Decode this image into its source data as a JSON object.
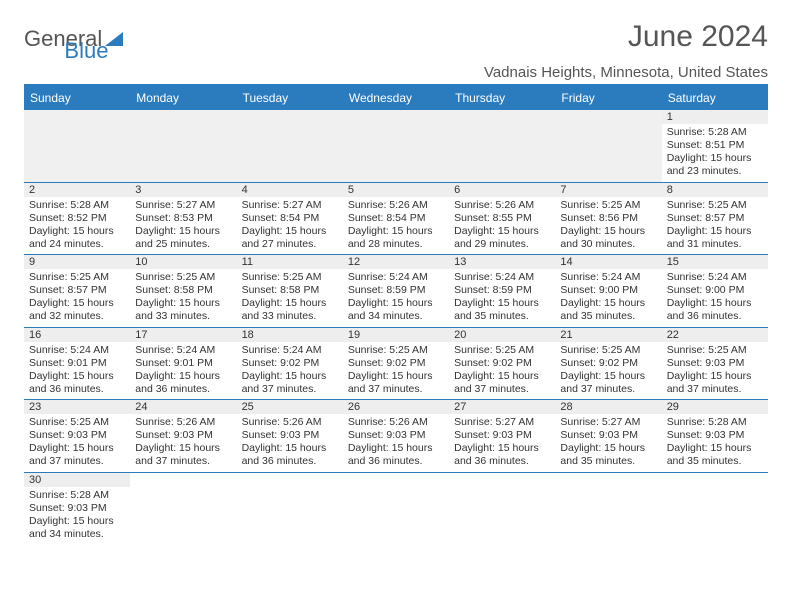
{
  "logo": {
    "text1": "General",
    "text2": "Blue",
    "color1": "#555555",
    "color2": "#2b7bbf"
  },
  "title": "June 2024",
  "location": "Vadnais Heights, Minnesota, United States",
  "header_color": "#2b7bbf",
  "row_bar_color": "#eeeeee",
  "daynames": [
    "Sunday",
    "Monday",
    "Tuesday",
    "Wednesday",
    "Thursday",
    "Friday",
    "Saturday"
  ],
  "labels": {
    "sunrise": "Sunrise:",
    "sunset": "Sunset:",
    "daylight": "Daylight:"
  },
  "weeks": [
    [
      null,
      null,
      null,
      null,
      null,
      null,
      {
        "d": "1",
        "sunrise": "5:28 AM",
        "sunset": "8:51 PM",
        "daylight": "15 hours and 23 minutes."
      }
    ],
    [
      {
        "d": "2",
        "sunrise": "5:28 AM",
        "sunset": "8:52 PM",
        "daylight": "15 hours and 24 minutes."
      },
      {
        "d": "3",
        "sunrise": "5:27 AM",
        "sunset": "8:53 PM",
        "daylight": "15 hours and 25 minutes."
      },
      {
        "d": "4",
        "sunrise": "5:27 AM",
        "sunset": "8:54 PM",
        "daylight": "15 hours and 27 minutes."
      },
      {
        "d": "5",
        "sunrise": "5:26 AM",
        "sunset": "8:54 PM",
        "daylight": "15 hours and 28 minutes."
      },
      {
        "d": "6",
        "sunrise": "5:26 AM",
        "sunset": "8:55 PM",
        "daylight": "15 hours and 29 minutes."
      },
      {
        "d": "7",
        "sunrise": "5:25 AM",
        "sunset": "8:56 PM",
        "daylight": "15 hours and 30 minutes."
      },
      {
        "d": "8",
        "sunrise": "5:25 AM",
        "sunset": "8:57 PM",
        "daylight": "15 hours and 31 minutes."
      }
    ],
    [
      {
        "d": "9",
        "sunrise": "5:25 AM",
        "sunset": "8:57 PM",
        "daylight": "15 hours and 32 minutes."
      },
      {
        "d": "10",
        "sunrise": "5:25 AM",
        "sunset": "8:58 PM",
        "daylight": "15 hours and 33 minutes."
      },
      {
        "d": "11",
        "sunrise": "5:25 AM",
        "sunset": "8:58 PM",
        "daylight": "15 hours and 33 minutes."
      },
      {
        "d": "12",
        "sunrise": "5:24 AM",
        "sunset": "8:59 PM",
        "daylight": "15 hours and 34 minutes."
      },
      {
        "d": "13",
        "sunrise": "5:24 AM",
        "sunset": "8:59 PM",
        "daylight": "15 hours and 35 minutes."
      },
      {
        "d": "14",
        "sunrise": "5:24 AM",
        "sunset": "9:00 PM",
        "daylight": "15 hours and 35 minutes."
      },
      {
        "d": "15",
        "sunrise": "5:24 AM",
        "sunset": "9:00 PM",
        "daylight": "15 hours and 36 minutes."
      }
    ],
    [
      {
        "d": "16",
        "sunrise": "5:24 AM",
        "sunset": "9:01 PM",
        "daylight": "15 hours and 36 minutes."
      },
      {
        "d": "17",
        "sunrise": "5:24 AM",
        "sunset": "9:01 PM",
        "daylight": "15 hours and 36 minutes."
      },
      {
        "d": "18",
        "sunrise": "5:24 AM",
        "sunset": "9:02 PM",
        "daylight": "15 hours and 37 minutes."
      },
      {
        "d": "19",
        "sunrise": "5:25 AM",
        "sunset": "9:02 PM",
        "daylight": "15 hours and 37 minutes."
      },
      {
        "d": "20",
        "sunrise": "5:25 AM",
        "sunset": "9:02 PM",
        "daylight": "15 hours and 37 minutes."
      },
      {
        "d": "21",
        "sunrise": "5:25 AM",
        "sunset": "9:02 PM",
        "daylight": "15 hours and 37 minutes."
      },
      {
        "d": "22",
        "sunrise": "5:25 AM",
        "sunset": "9:03 PM",
        "daylight": "15 hours and 37 minutes."
      }
    ],
    [
      {
        "d": "23",
        "sunrise": "5:25 AM",
        "sunset": "9:03 PM",
        "daylight": "15 hours and 37 minutes."
      },
      {
        "d": "24",
        "sunrise": "5:26 AM",
        "sunset": "9:03 PM",
        "daylight": "15 hours and 37 minutes."
      },
      {
        "d": "25",
        "sunrise": "5:26 AM",
        "sunset": "9:03 PM",
        "daylight": "15 hours and 36 minutes."
      },
      {
        "d": "26",
        "sunrise": "5:26 AM",
        "sunset": "9:03 PM",
        "daylight": "15 hours and 36 minutes."
      },
      {
        "d": "27",
        "sunrise": "5:27 AM",
        "sunset": "9:03 PM",
        "daylight": "15 hours and 36 minutes."
      },
      {
        "d": "28",
        "sunrise": "5:27 AM",
        "sunset": "9:03 PM",
        "daylight": "15 hours and 35 minutes."
      },
      {
        "d": "29",
        "sunrise": "5:28 AM",
        "sunset": "9:03 PM",
        "daylight": "15 hours and 35 minutes."
      }
    ],
    [
      {
        "d": "30",
        "sunrise": "5:28 AM",
        "sunset": "9:03 PM",
        "daylight": "15 hours and 34 minutes."
      },
      null,
      null,
      null,
      null,
      null,
      null
    ]
  ]
}
